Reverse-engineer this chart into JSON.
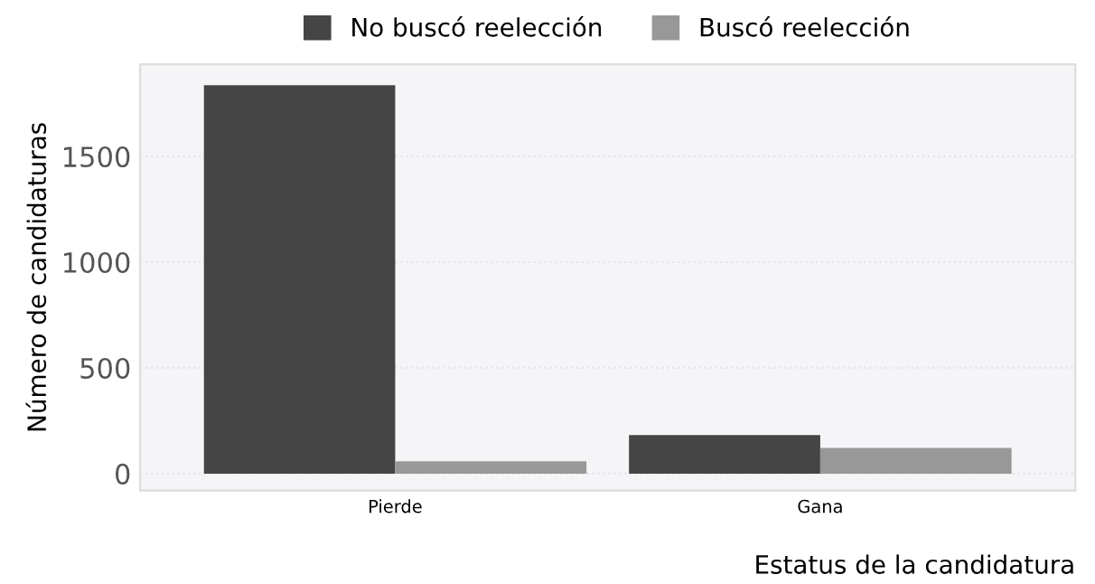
{
  "chart_data": {
    "type": "bar",
    "xlabel": "Estatus de la candidatura",
    "ylabel": "Número de candidaturas",
    "categories": [
      "Pierde",
      "Gana"
    ],
    "series": [
      {
        "name": "No buscó reelección",
        "color": "#454545",
        "values": [
          1837,
          182
        ]
      },
      {
        "name": "Buscó reelección",
        "color": "#989898",
        "values": [
          59,
          122
        ]
      }
    ],
    "ylim": [
      -80,
      1936
    ],
    "yticks": [
      0,
      500,
      1000,
      1500
    ],
    "grid": "y",
    "legend": "top"
  }
}
